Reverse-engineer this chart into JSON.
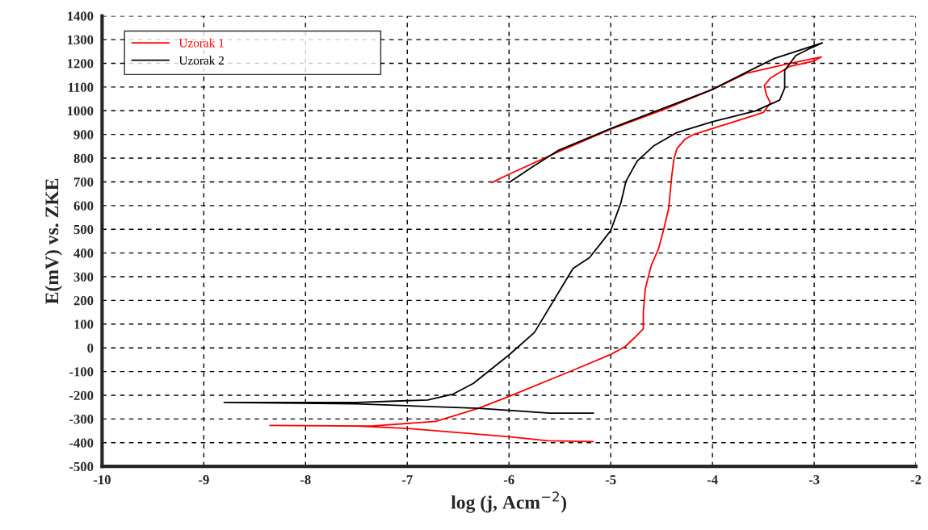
{
  "chart_data": {
    "type": "line",
    "xlabel": "log (j, Acm$^{−2}$)",
    "ylabel": "E(mV) vs. ZKE",
    "xlim": [
      -10,
      -2
    ],
    "xticks": [
      -10,
      -9,
      -8,
      -7,
      -6,
      -5,
      -4,
      -3,
      -2
    ],
    "ylim": [
      -500,
      1400
    ],
    "yticks": [
      -500,
      -400,
      -300,
      -200,
      -100,
      0,
      100,
      200,
      300,
      400,
      500,
      600,
      700,
      800,
      900,
      1000,
      1100,
      1200,
      1300,
      1400
    ],
    "grid": true,
    "legend": "top left",
    "marker": "none",
    "line_style": "solid",
    "series": [
      {
        "name": "Uzorak 1",
        "color": "#ff0000",
        "x": [
          -5.17,
          -5.62,
          -6.0,
          -7.0,
          -7.5,
          -8.35,
          -7.35,
          -6.72,
          -6.3,
          -6.0,
          -5.39,
          -5.0,
          -4.86,
          -4.76,
          -4.68,
          -4.68,
          -4.66,
          -4.6,
          -4.53,
          -4.48,
          -4.43,
          -4.4,
          -4.38,
          -4.35,
          -4.27,
          -4.19,
          -3.92,
          -3.66,
          -3.5,
          -3.43,
          -3.47,
          -3.49,
          -3.43,
          -3.24,
          -3.0,
          -2.93,
          -3.26,
          -3.66,
          -4.0,
          -4.45,
          -5.0,
          -5.51,
          -6.0,
          -6.17
        ],
        "values": [
          -395,
          -392,
          -375,
          -340,
          -330,
          -327,
          -330,
          -310,
          -255,
          -205,
          -98,
          -28,
          5,
          45,
          80,
          150,
          250,
          350,
          418,
          498,
          589,
          726,
          794,
          840,
          880,
          899,
          936,
          971,
          993,
          1033,
          1067,
          1107,
          1138,
          1187,
          1210,
          1227,
          1198,
          1159,
          1090,
          1010,
          922,
          828,
          732,
          697
        ]
      },
      {
        "name": "Uzorak 2",
        "color": "#000000",
        "x": [
          -5.17,
          -5.6,
          -6.3,
          -7.5,
          -8.8,
          -7.5,
          -6.8,
          -6.55,
          -6.35,
          -6.0,
          -5.75,
          -5.42,
          -5.37,
          -5.21,
          -5.08,
          -5.0,
          -4.9,
          -4.85,
          -4.74,
          -4.58,
          -4.35,
          -4.0,
          -3.58,
          -3.34,
          -3.29,
          -3.29,
          -3.18,
          -3.02,
          -2.92,
          -3.39,
          -3.66,
          -4.0,
          -5.0,
          -5.51,
          -5.78,
          -6.0
        ],
        "values": [
          -275,
          -275,
          -255,
          -236,
          -230,
          -230,
          -220,
          -195,
          -150,
          -30,
          65,
          300,
          335,
          380,
          450,
          495,
          612,
          703,
          788,
          851,
          908,
          954,
          999,
          1045,
          1096,
          1170,
          1233,
          1267,
          1286,
          1221,
          1164,
          1090,
          925,
          834,
          760,
          697
        ]
      }
    ]
  }
}
